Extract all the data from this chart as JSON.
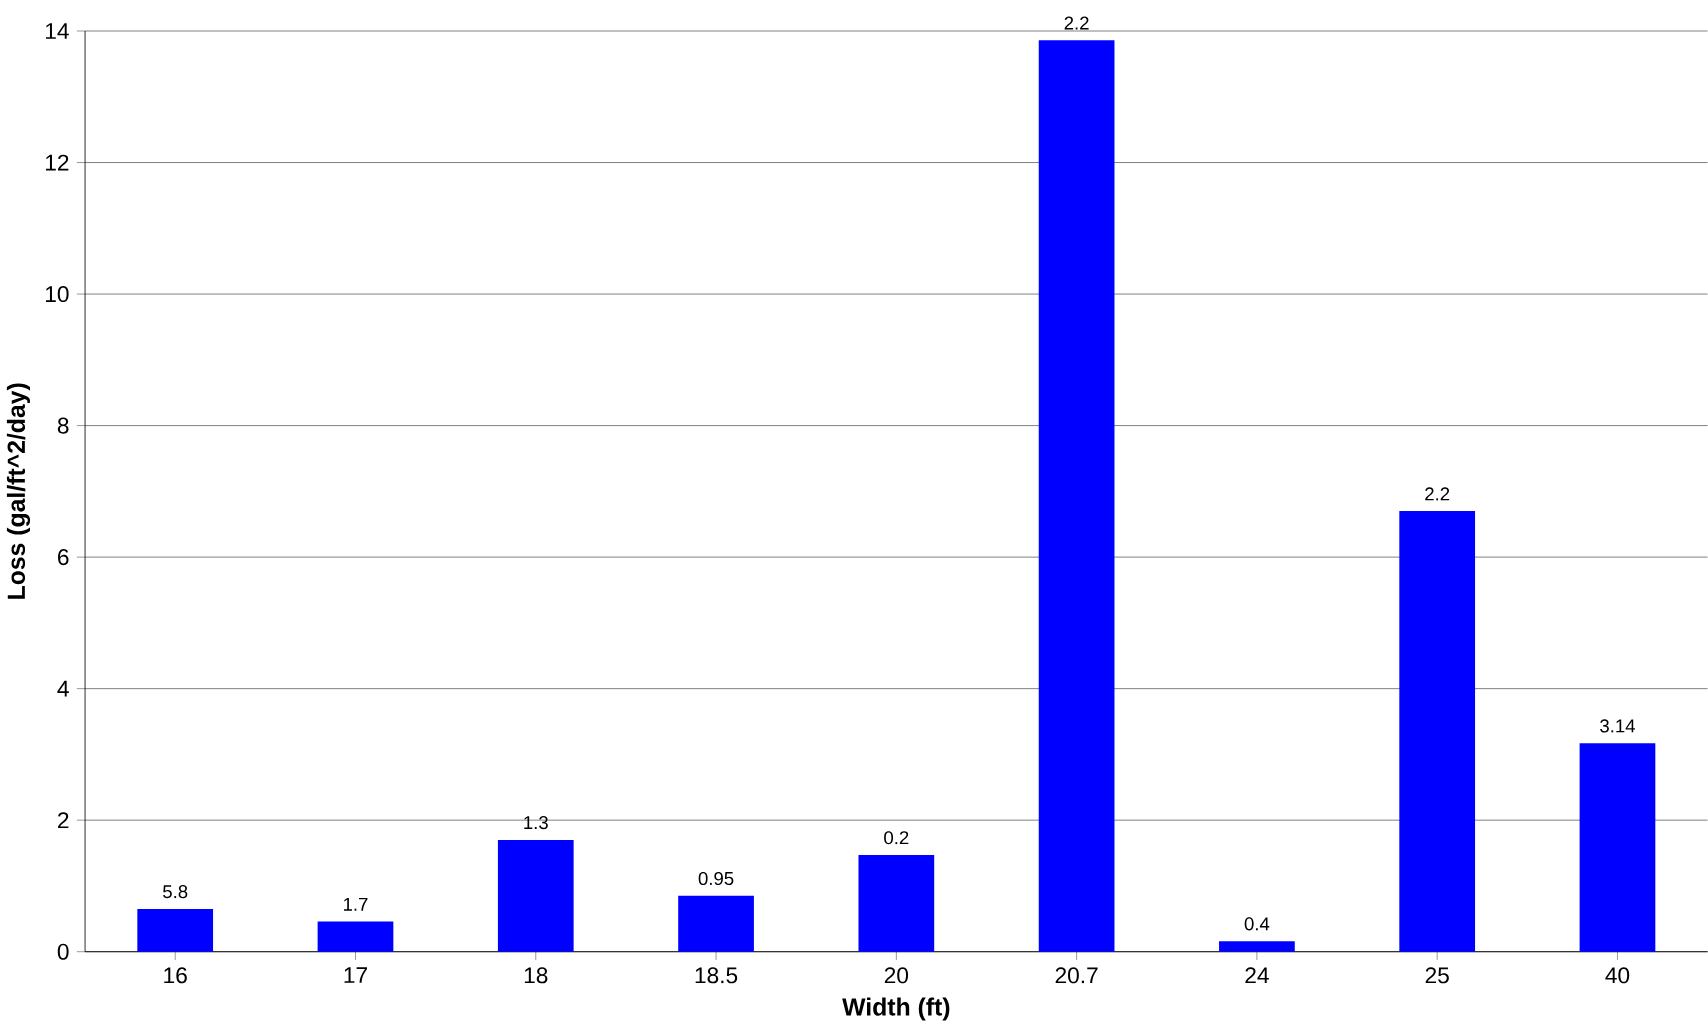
{
  "chart_data": {
    "type": "bar",
    "xlabel": "Width (ft)",
    "ylabel": "Loss (gal/ft^2/day)",
    "categories": [
      "16",
      "17",
      "18",
      "18.5",
      "20",
      "20.7",
      "24",
      "25",
      "40"
    ],
    "values": [
      0.65,
      0.46,
      1.7,
      0.85,
      1.47,
      13.86,
      0.16,
      6.7,
      3.17
    ],
    "annotations": [
      {
        "text": "5.8",
        "x": "16",
        "y": 0.65
      },
      {
        "text": "1.7",
        "x": "17",
        "y": 0.46
      },
      {
        "text": "1.3",
        "x": "18",
        "y": 1.7
      },
      {
        "text": "0.95",
        "x": "18.5",
        "y": 0.85
      },
      {
        "text": "0.2",
        "x": "20",
        "y": 1.47
      },
      {
        "text": "2.2",
        "x": "20.7",
        "y": 13.86
      },
      {
        "text": "0.4",
        "x": "24",
        "y": 0.16
      },
      {
        "text": "2.2",
        "x": "25",
        "y": 6.7
      },
      {
        "text": "3.14",
        "x": "40",
        "y": 3.17
      }
    ],
    "color": "#0000ff",
    "ylim": [
      0,
      14
    ],
    "yticks": [
      0,
      2,
      4,
      6,
      8,
      10,
      12,
      14
    ],
    "grid": "y"
  }
}
